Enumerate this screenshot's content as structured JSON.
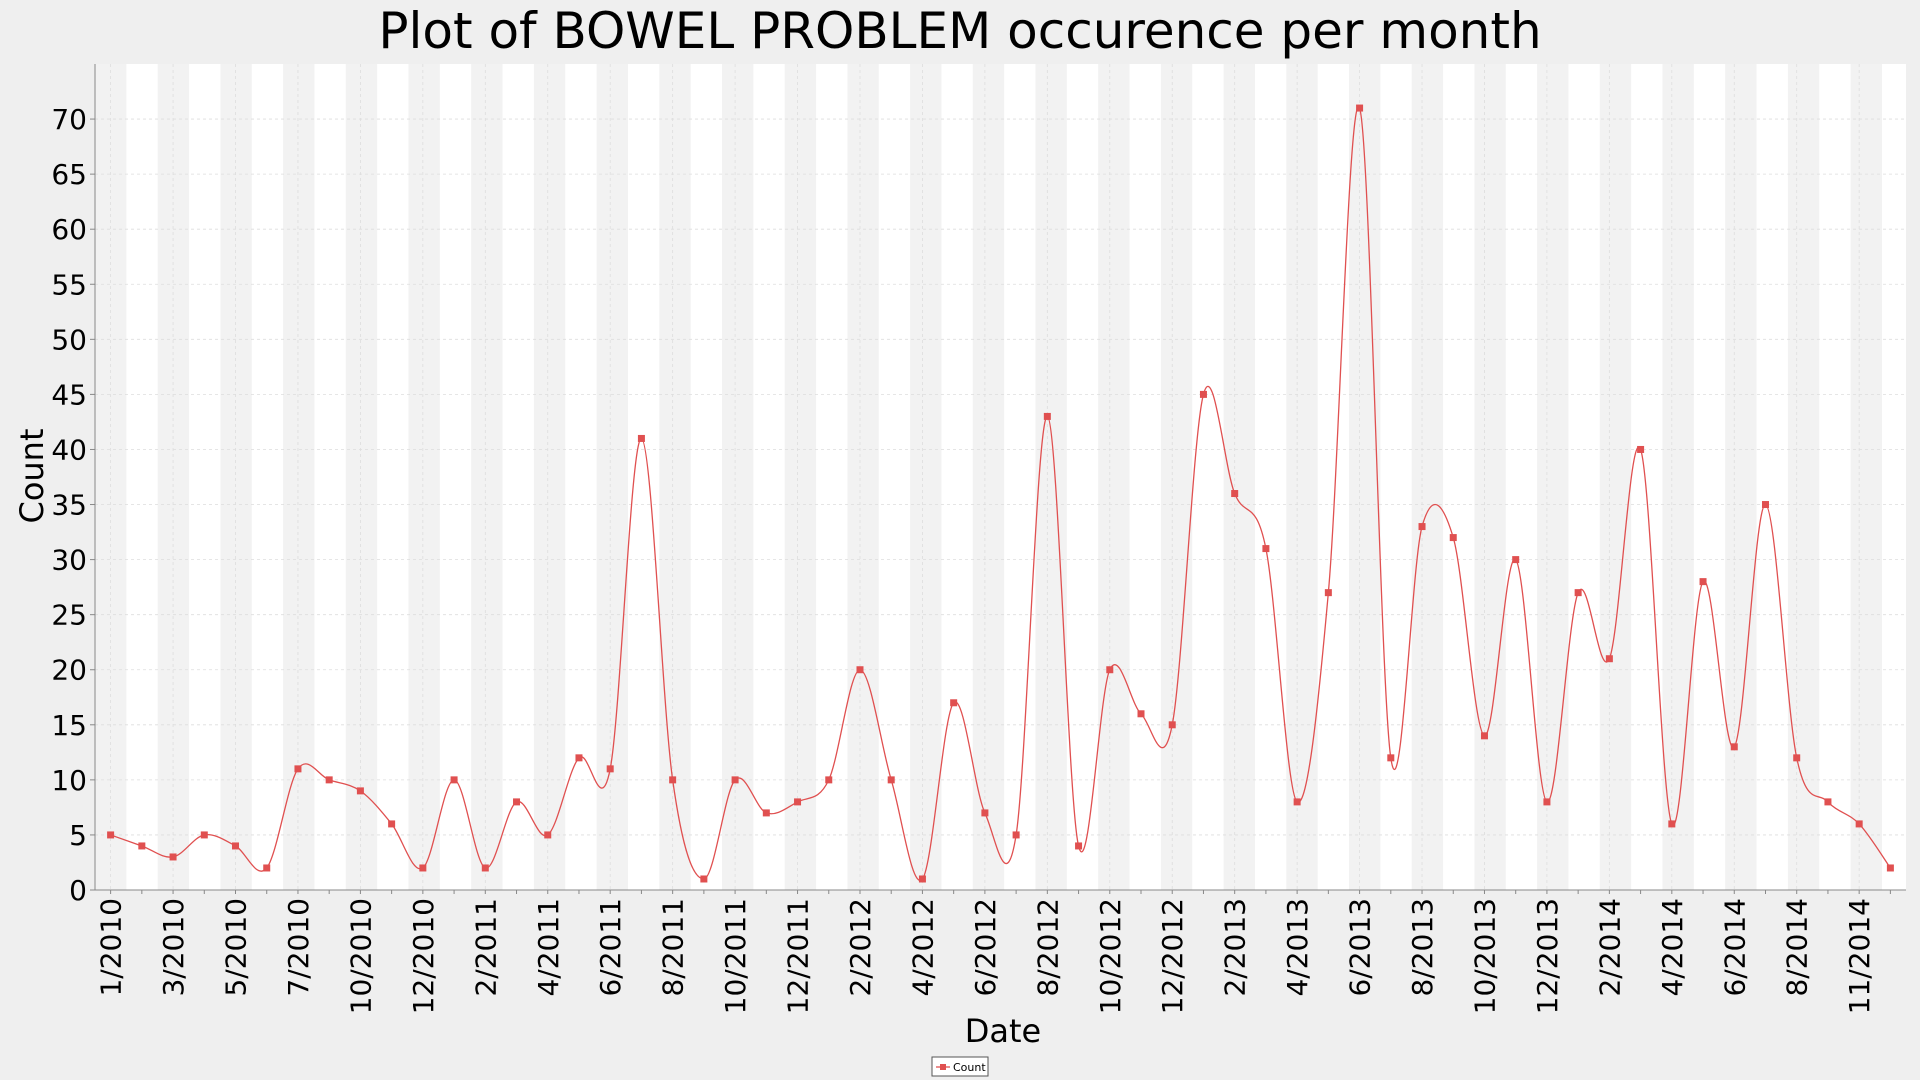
{
  "chart_data": {
    "type": "line",
    "title": "Plot of BOWEL PROBLEM occurence per month",
    "xlabel": "Date",
    "ylabel": "Count",
    "ylim": [
      0,
      75
    ],
    "yticks": [
      0,
      5,
      10,
      15,
      20,
      25,
      30,
      35,
      40,
      45,
      50,
      55,
      60,
      65,
      70
    ],
    "xlim_index": [
      -0.5,
      57.5
    ],
    "xtick_labels": [
      {
        "index": 0,
        "label": "1/2010"
      },
      {
        "index": 2,
        "label": "3/2010"
      },
      {
        "index": 4,
        "label": "5/2010"
      },
      {
        "index": 6,
        "label": "7/2010"
      },
      {
        "index": 8,
        "label": "10/2010"
      },
      {
        "index": 10,
        "label": "12/2010"
      },
      {
        "index": 12,
        "label": "2/2011"
      },
      {
        "index": 14,
        "label": "4/2011"
      },
      {
        "index": 16,
        "label": "6/2011"
      },
      {
        "index": 18,
        "label": "8/2011"
      },
      {
        "index": 20,
        "label": "10/2011"
      },
      {
        "index": 22,
        "label": "12/2011"
      },
      {
        "index": 24,
        "label": "2/2012"
      },
      {
        "index": 26,
        "label": "4/2012"
      },
      {
        "index": 28,
        "label": "6/2012"
      },
      {
        "index": 30,
        "label": "8/2012"
      },
      {
        "index": 32,
        "label": "10/2012"
      },
      {
        "index": 34,
        "label": "12/2012"
      },
      {
        "index": 36,
        "label": "2/2013"
      },
      {
        "index": 38,
        "label": "4/2013"
      },
      {
        "index": 40,
        "label": "6/2013"
      },
      {
        "index": 42,
        "label": "8/2013"
      },
      {
        "index": 44,
        "label": "10/2013"
      },
      {
        "index": 46,
        "label": "12/2013"
      },
      {
        "index": 48,
        "label": "2/2014"
      },
      {
        "index": 50,
        "label": "4/2014"
      },
      {
        "index": 52,
        "label": "6/2014"
      },
      {
        "index": 54,
        "label": "8/2014"
      },
      {
        "index": 56,
        "label": "11/2014"
      }
    ],
    "series": [
      {
        "name": "Count",
        "color": "#e05050",
        "values": [
          5,
          4,
          3,
          5,
          4,
          2,
          11,
          10,
          9,
          6,
          2,
          10,
          2,
          8,
          5,
          12,
          11,
          41,
          10,
          1,
          10,
          7,
          8,
          10,
          20,
          10,
          1,
          17,
          7,
          5,
          43,
          4,
          20,
          16,
          15,
          45,
          36,
          31,
          8,
          27,
          71,
          12,
          33,
          32,
          14,
          30,
          8,
          27,
          21,
          40,
          6,
          28,
          13,
          35,
          12,
          8,
          6,
          2
        ]
      }
    ],
    "grid": true,
    "legend_position": "bottom-center",
    "colors": {
      "background": "#efefef",
      "plot_bg": "#ffffff",
      "band": "#f2f2f2",
      "line": "#e05050"
    }
  }
}
